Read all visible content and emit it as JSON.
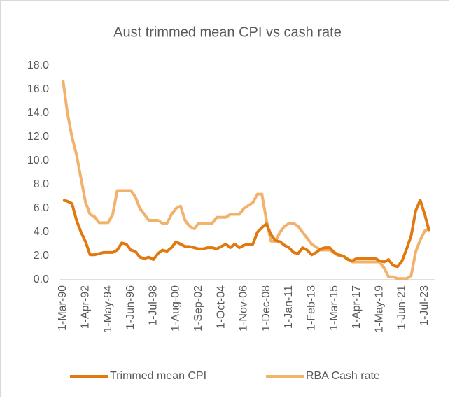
{
  "chart_data": {
    "type": "line",
    "title": "Aust trimmed mean CPI vs cash rate",
    "categories": [
      "1-Mar-90",
      null,
      null,
      null,
      null,
      "1-Apr-92",
      null,
      null,
      null,
      null,
      "1-May-94",
      null,
      null,
      null,
      null,
      "1-Jun-96",
      null,
      null,
      null,
      null,
      "1-Jul-98",
      null,
      null,
      null,
      null,
      "1-Aug-00",
      null,
      null,
      null,
      null,
      "1-Sep-02",
      null,
      null,
      null,
      null,
      "1-Oct-04",
      null,
      null,
      null,
      null,
      "1-Nov-06",
      null,
      null,
      null,
      null,
      "1-Dec-08",
      null,
      null,
      null,
      null,
      "1-Jan-11",
      null,
      null,
      null,
      null,
      "1-Feb-13",
      null,
      null,
      null,
      null,
      "1-Mar-15",
      null,
      null,
      null,
      null,
      "1-Apr-17",
      null,
      null,
      null,
      null,
      "1-May-19",
      null,
      null,
      null,
      null,
      "1-Jun-21",
      null,
      null,
      null,
      null,
      "1-Jul-23",
      null
    ],
    "series": [
      {
        "name": "Trimmed mean CPI",
        "color": "#e07a10",
        "values": [
          6.7,
          6.6,
          6.4,
          5.0,
          4.0,
          3.2,
          2.1,
          2.1,
          2.2,
          2.3,
          2.3,
          2.3,
          2.5,
          3.1,
          3.0,
          2.5,
          2.4,
          1.9,
          1.8,
          1.9,
          1.7,
          2.2,
          2.5,
          2.4,
          2.7,
          3.2,
          3.0,
          2.8,
          2.8,
          2.7,
          2.6,
          2.6,
          2.7,
          2.7,
          2.6,
          2.8,
          3.0,
          2.7,
          3.0,
          2.7,
          2.9,
          3.0,
          3.0,
          4.0,
          4.4,
          4.7,
          3.8,
          3.3,
          3.2,
          2.9,
          2.7,
          2.3,
          2.2,
          2.7,
          2.5,
          2.1,
          2.3,
          2.6,
          2.7,
          2.7,
          2.3,
          2.1,
          2.0,
          1.7,
          1.6,
          1.8,
          1.8,
          1.8,
          1.8,
          1.8,
          1.6,
          1.5,
          1.7,
          1.2,
          1.1,
          1.6,
          2.6,
          3.7,
          5.8,
          6.7,
          5.5,
          4.1
        ]
      },
      {
        "name": "RBA Cash rate",
        "color": "#f2b26b",
        "values": [
          16.8,
          14.0,
          12.0,
          10.5,
          8.5,
          6.5,
          5.5,
          5.3,
          4.8,
          4.8,
          4.8,
          5.5,
          7.5,
          7.5,
          7.5,
          7.5,
          7.0,
          6.0,
          5.5,
          5.0,
          5.0,
          5.0,
          4.75,
          4.75,
          5.5,
          6.0,
          6.2,
          5.0,
          4.5,
          4.3,
          4.75,
          4.75,
          4.75,
          4.75,
          5.25,
          5.25,
          5.25,
          5.5,
          5.5,
          5.5,
          6.0,
          6.25,
          6.5,
          7.2,
          7.2,
          5.0,
          3.25,
          3.25,
          4.0,
          4.5,
          4.75,
          4.75,
          4.5,
          4.0,
          3.5,
          3.0,
          2.75,
          2.5,
          2.5,
          2.5,
          2.25,
          2.0,
          2.0,
          1.75,
          1.5,
          1.5,
          1.5,
          1.5,
          1.5,
          1.5,
          1.5,
          1.0,
          0.25,
          0.25,
          0.1,
          0.1,
          0.1,
          0.35,
          2.35,
          3.35,
          4.1,
          4.35
        ]
      }
    ],
    "ylim": [
      0,
      18
    ],
    "yticks": [
      {
        "value": 0,
        "label": "0.0"
      },
      {
        "value": 2,
        "label": "2.0"
      },
      {
        "value": 4,
        "label": "4.0"
      },
      {
        "value": 6,
        "label": "6.0"
      },
      {
        "value": 8,
        "label": "8.0"
      },
      {
        "value": 10,
        "label": "10.0"
      },
      {
        "value": 12,
        "label": "12.0"
      },
      {
        "value": 14,
        "label": "14.0"
      },
      {
        "value": 16,
        "label": "16.0"
      },
      {
        "value": 18,
        "label": "18.0"
      }
    ],
    "grid": false,
    "legend": "bottom"
  }
}
